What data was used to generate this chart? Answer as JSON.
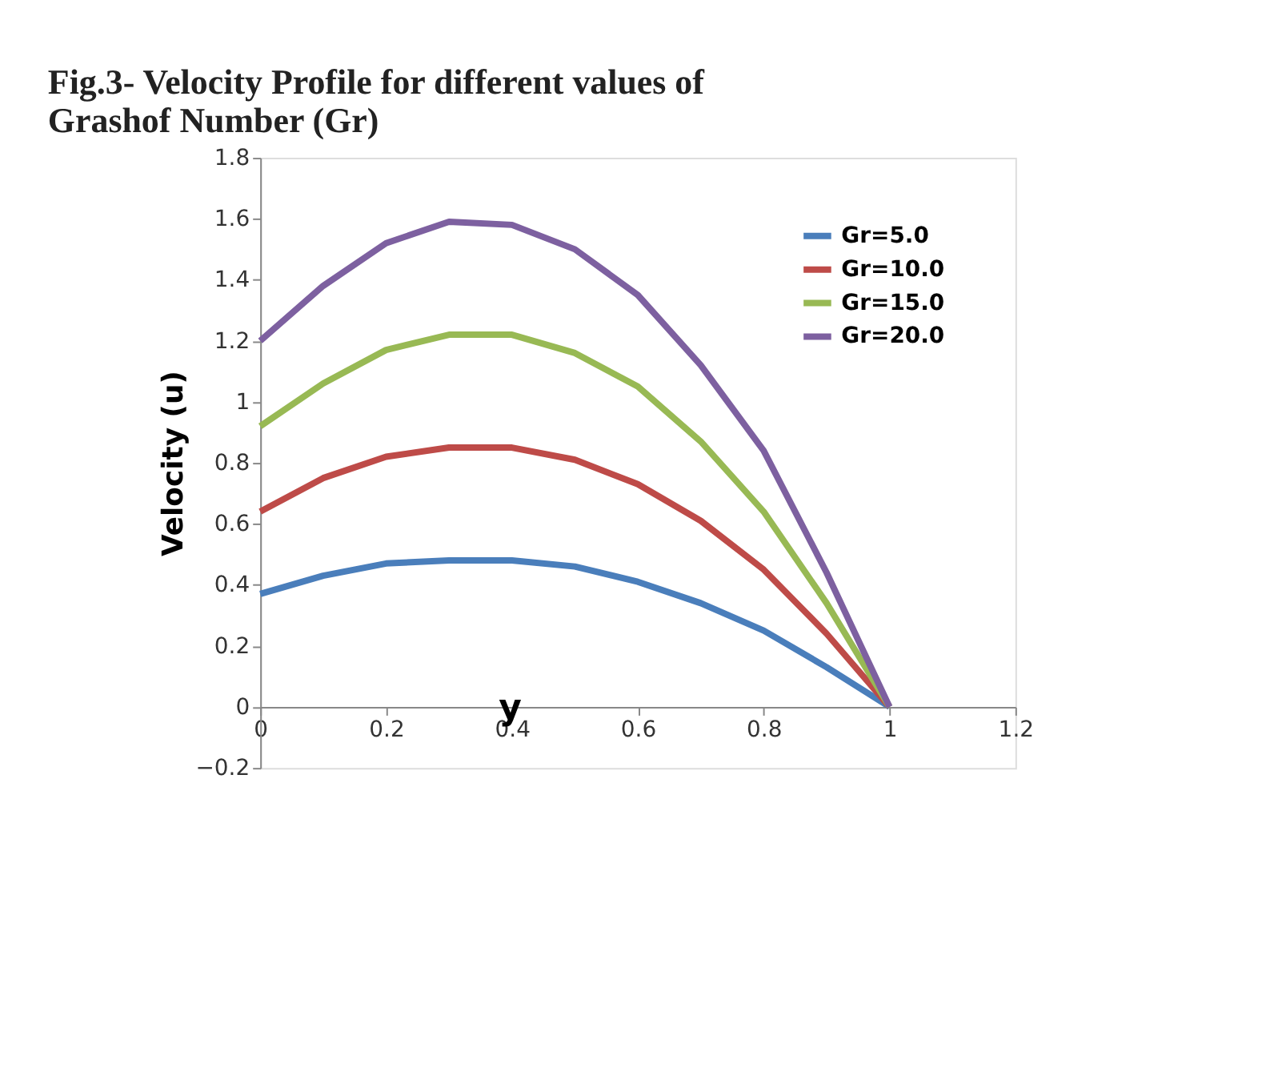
{
  "chart_data": {
    "type": "line",
    "title": "Fig.3- Velocity Profile for different values of Grashof Number (Gr)",
    "xlabel": "y",
    "ylabel": "Velocity (u)",
    "x": [
      0,
      0.1,
      0.2,
      0.3,
      0.4,
      0.5,
      0.6,
      0.7,
      0.8,
      0.9,
      1.0
    ],
    "series": [
      {
        "name": "Gr=5.0",
        "color": "#4a7ebb",
        "values": [
          0.37,
          0.43,
          0.47,
          0.48,
          0.48,
          0.46,
          0.41,
          0.34,
          0.25,
          0.13,
          0
        ]
      },
      {
        "name": "Gr=10.0",
        "color": "#be4b48",
        "values": [
          0.64,
          0.75,
          0.82,
          0.85,
          0.85,
          0.81,
          0.73,
          0.61,
          0.45,
          0.24,
          0
        ]
      },
      {
        "name": "Gr=15.0",
        "color": "#98b954",
        "values": [
          0.92,
          1.06,
          1.17,
          1.22,
          1.22,
          1.16,
          1.05,
          0.87,
          0.64,
          0.34,
          0
        ]
      },
      {
        "name": "Gr=20.0",
        "color": "#7d60a0",
        "values": [
          1.2,
          1.38,
          1.52,
          1.59,
          1.58,
          1.5,
          1.35,
          1.12,
          0.84,
          0.44,
          0
        ]
      }
    ],
    "xlim": [
      0,
      1.2
    ],
    "xticks": [
      0,
      0.2,
      0.4,
      0.6,
      0.8,
      1,
      1.2
    ],
    "ylim": [
      -0.2,
      1.8
    ],
    "yticks": [
      -0.2,
      0,
      0.2,
      0.4,
      0.6,
      0.8,
      1,
      1.2,
      1.4,
      1.6,
      1.8
    ],
    "grid": false,
    "legend": "right",
    "marker": "none",
    "line_style": "solid"
  }
}
